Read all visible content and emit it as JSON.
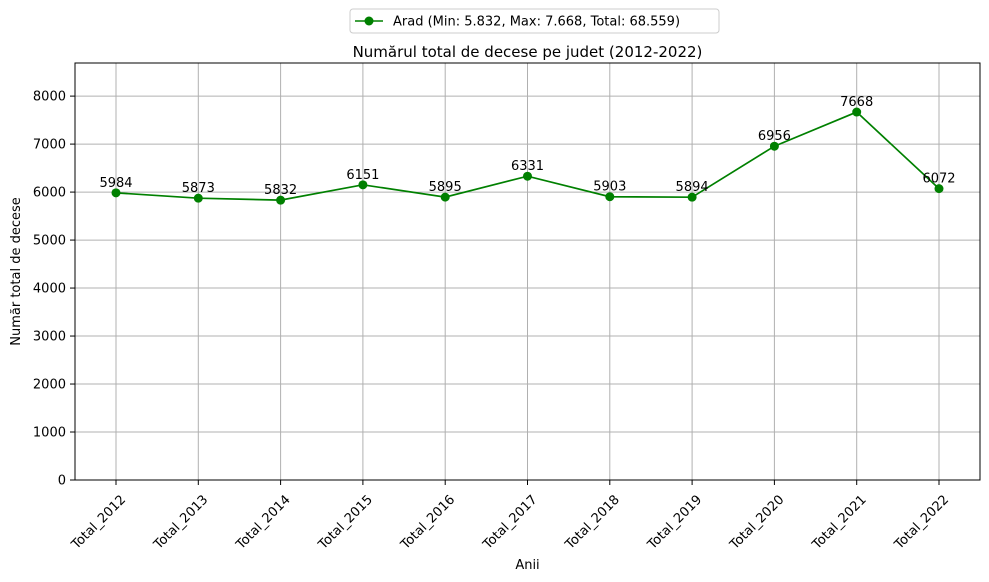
{
  "chart_data": {
    "type": "line",
    "title": "Numărul total de decese pe judet (2012-2022)",
    "xlabel": "Anii",
    "ylabel": "Număr total de decese",
    "categories": [
      "Total_2012",
      "Total_2013",
      "Total_2014",
      "Total_2015",
      "Total_2016",
      "Total_2017",
      "Total_2018",
      "Total_2019",
      "Total_2020",
      "Total_2021",
      "Total_2022"
    ],
    "series": [
      {
        "name": "Arad (Min: 5.832, Max: 7.668, Total: 68.559)",
        "values": [
          5984,
          5873,
          5832,
          6151,
          5895,
          6331,
          5903,
          5894,
          6956,
          7668,
          6072
        ],
        "color": "#008000",
        "marker": "circle"
      }
    ],
    "data_labels": [
      "5984",
      "5873",
      "5832",
      "6151",
      "5895",
      "6331",
      "5903",
      "5894",
      "6956",
      "7668",
      "6072"
    ],
    "ylim": [
      0,
      8690
    ],
    "yticks": [
      0,
      1000,
      2000,
      3000,
      4000,
      5000,
      6000,
      7000,
      8000
    ],
    "ytick_labels": [
      "0",
      "1000",
      "2000",
      "3000",
      "4000",
      "5000",
      "6000",
      "7000",
      "8000"
    ],
    "grid": true,
    "legend_position": "top-center (above plot)",
    "xtick_rotation": 45
  }
}
